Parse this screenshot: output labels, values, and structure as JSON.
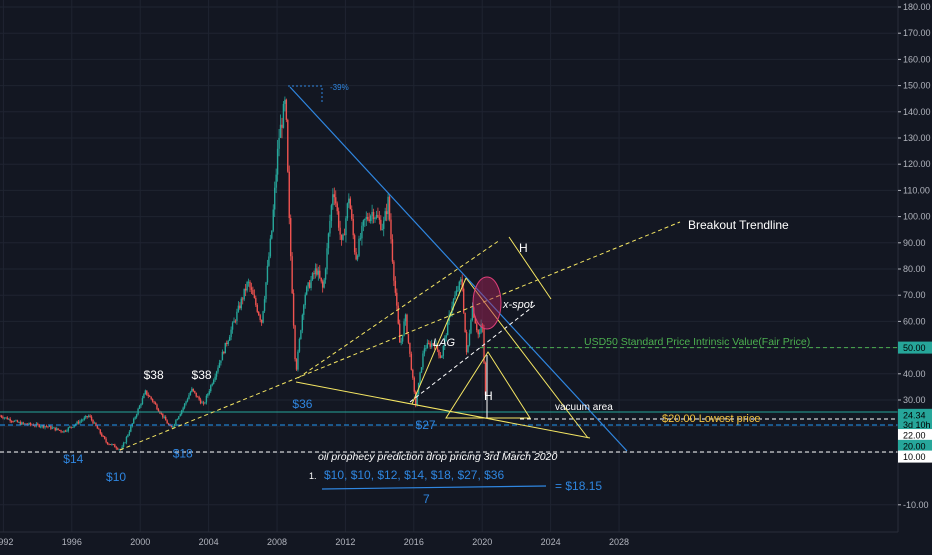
{
  "chart_data": {
    "type": "candlestick",
    "x_ticks": [
      "1992",
      "1996",
      "2000",
      "2004",
      "2008",
      "2012",
      "2016",
      "2020",
      "2024",
      "2028"
    ],
    "y_ticks": [
      "180.00",
      "170.00",
      "160.00",
      "150.00",
      "140.00",
      "130.00",
      "120.00",
      "110.00",
      "100.00",
      "90.00",
      "80.00",
      "70.00",
      "60.00",
      "50.00",
      "40.00",
      "30.00",
      "20.00",
      "10.00",
      "-10.00"
    ],
    "ylim": [
      -14,
      182
    ],
    "xlim": [
      1991.8,
      2031.6
    ],
    "price_badges": [
      {
        "label": "50.00",
        "value": 50,
        "bg": "#26a69a",
        "fg": "#000000"
      },
      {
        "label": "24.34",
        "value": 24.34,
        "bg": "#26a69a",
        "fg": "#000000"
      },
      {
        "label": "3d 10h",
        "value": 20.7,
        "bg": "#26a69a",
        "fg": "#000000"
      },
      {
        "label": "22.00",
        "value": 16.6,
        "bg": "#ffffff",
        "fg": "#000000"
      },
      {
        "label": "20.00",
        "value": 12.5,
        "bg": "#26a69a",
        "fg": "#000000"
      },
      {
        "label": "10.00",
        "value": 8.4,
        "bg": "#ffffff",
        "fg": "#000000"
      }
    ],
    "price_path": [
      [
        1991.8,
        24
      ],
      [
        1993,
        21
      ],
      [
        1994.5,
        20
      ],
      [
        1995.5,
        18
      ],
      [
        1996.5,
        22
      ],
      [
        1997,
        24
      ],
      [
        1998,
        14
      ],
      [
        1998.9,
        11
      ],
      [
        1999.6,
        22
      ],
      [
        2000.3,
        33
      ],
      [
        2000.7,
        30
      ],
      [
        2001.8,
        19
      ],
      [
        2002.5,
        27
      ],
      [
        2003,
        34
      ],
      [
        2003.7,
        28
      ],
      [
        2004.5,
        42
      ],
      [
        2005.5,
        60
      ],
      [
        2006.3,
        75
      ],
      [
        2007.1,
        60
      ],
      [
        2007.7,
        95
      ],
      [
        2008.1,
        130
      ],
      [
        2008.5,
        144
      ],
      [
        2008.7,
        100
      ],
      [
        2009.1,
        40
      ],
      [
        2009.6,
        70
      ],
      [
        2010.3,
        80
      ],
      [
        2010.7,
        72
      ],
      [
        2011.3,
        112
      ],
      [
        2011.8,
        88
      ],
      [
        2012.2,
        108
      ],
      [
        2012.6,
        84
      ],
      [
        2013.1,
        98
      ],
      [
        2013.6,
        102
      ],
      [
        2014.2,
        96
      ],
      [
        2014.5,
        106
      ],
      [
        2014.8,
        80
      ],
      [
        2015.2,
        50
      ],
      [
        2015.5,
        62
      ],
      [
        2015.9,
        40
      ],
      [
        2016.1,
        28
      ],
      [
        2016.6,
        50
      ],
      [
        2017.2,
        52
      ],
      [
        2017.6,
        46
      ],
      [
        2018.2,
        66
      ],
      [
        2018.8,
        76
      ],
      [
        2019.1,
        46
      ],
      [
        2019.4,
        66
      ],
      [
        2019.8,
        54
      ],
      [
        2020.0,
        60
      ],
      [
        2020.1,
        45
      ],
      [
        2020.2,
        30
      ]
    ],
    "annotations": {
      "peak_pct": "-39%",
      "breakout": "Breakout Trendline",
      "h_top": "H",
      "h_mid": "H",
      "xspot": "x-spot",
      "lag": "LAG",
      "fair_price": "USD50 Standard Price Intrinsic Value(Fair Price)",
      "lowest_price": "$20.00 Lowest price",
      "vacuum": "vacuum area",
      "prophecy": "oil prophecy prediction drop pricing 3rd March 2020",
      "list_num": "1.",
      "list": "$10, $10, $12, $14, $18, $27, $36",
      "result": "= $18.15",
      "divisor": "7"
    },
    "price_labels": [
      {
        "text": "$38",
        "x": 2000.2,
        "y": 38,
        "color": "white"
      },
      {
        "text": "$38",
        "x": 2003.0,
        "y": 38,
        "color": "white"
      },
      {
        "text": "$36",
        "x": 2008.9,
        "y": 27,
        "color": "blue"
      },
      {
        "text": "$27",
        "x": 2016.1,
        "y": 19,
        "color": "blue"
      },
      {
        "text": "$18",
        "x": 2001.9,
        "y": 8,
        "color": "blue"
      },
      {
        "text": "$14",
        "x": 1995.5,
        "y": 6,
        "color": "blue"
      },
      {
        "text": "$10",
        "x": 1998.0,
        "y": -1,
        "color": "blue"
      }
    ]
  }
}
